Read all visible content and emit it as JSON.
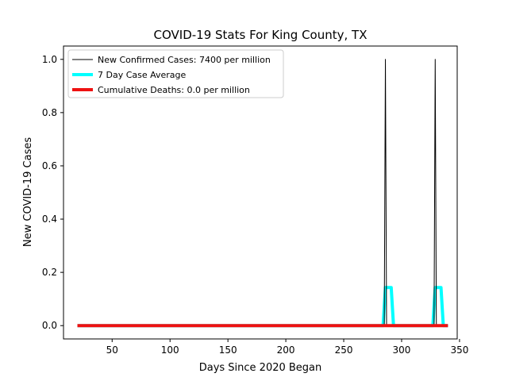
{
  "chart_data": {
    "type": "line",
    "title": "COVID-19 Stats For King County, TX",
    "xlabel": "Days Since 2020 Began",
    "ylabel": "New COVID-19 Cases",
    "xlim": [
      8,
      348
    ],
    "ylim": [
      -0.05,
      1.05
    ],
    "xticks": [
      50,
      100,
      150,
      200,
      250,
      300,
      350
    ],
    "yticks": [
      0.0,
      0.2,
      0.4,
      0.6,
      0.8,
      1.0
    ],
    "ytick_labels": [
      "0.0",
      "0.2",
      "0.4",
      "0.6",
      "0.8",
      "1.0"
    ],
    "grid": false,
    "legend_position": "top-left",
    "series": [
      {
        "name": "New Confirmed Cases: 7400 per million",
        "color": "#000000",
        "linewidth": 1,
        "x": [
          20,
          285,
          286,
          287,
          328,
          329,
          330,
          340
        ],
        "y": [
          0,
          0,
          1,
          0,
          0,
          1,
          0,
          0
        ]
      },
      {
        "name": "7 Day Case Average",
        "color": "#00ffff",
        "linewidth": 4,
        "x": [
          20,
          284,
          286,
          291,
          293,
          327,
          329,
          334,
          336,
          340
        ],
        "y": [
          0,
          0,
          0.142857,
          0.142857,
          0,
          0,
          0.142857,
          0.142857,
          0,
          0
        ]
      },
      {
        "name": "Cumulative Deaths: 0.0 per million",
        "color": "#ee1111",
        "linewidth": 4,
        "x": [
          20,
          340
        ],
        "y": [
          0,
          0
        ]
      }
    ]
  }
}
